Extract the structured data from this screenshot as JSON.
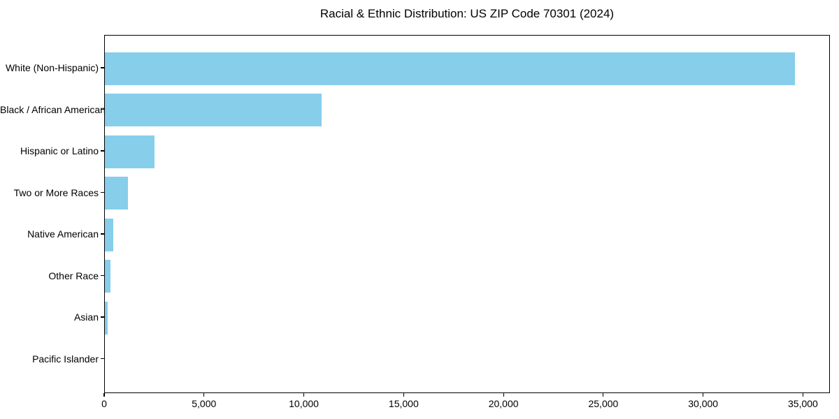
{
  "chart_data": {
    "type": "bar",
    "orientation": "horizontal",
    "title": "Racial & Ethnic Distribution: US ZIP Code 70301 (2024)",
    "categories": [
      "White (Non-Hispanic)",
      "Black / African American",
      "Hispanic or Latino",
      "Two or More Races",
      "Native American",
      "Other Race",
      "Asian",
      "Pacific Islander"
    ],
    "values": [
      34580,
      10870,
      2490,
      1150,
      430,
      290,
      130,
      0
    ],
    "xlabel": "",
    "ylabel": "",
    "xlim": [
      0,
      36350
    ],
    "xticks": [
      0,
      5000,
      10000,
      15000,
      20000,
      25000,
      30000,
      35000
    ],
    "xtick_labels": [
      "0",
      "5,000",
      "10,000",
      "15,000",
      "20,000",
      "25,000",
      "30,000",
      "35,000"
    ],
    "bar_color": "#87CEEB",
    "axis_color": "#000000",
    "text_color": "#000000",
    "background_color": "#ffffff",
    "grid": false,
    "legend": null
  }
}
